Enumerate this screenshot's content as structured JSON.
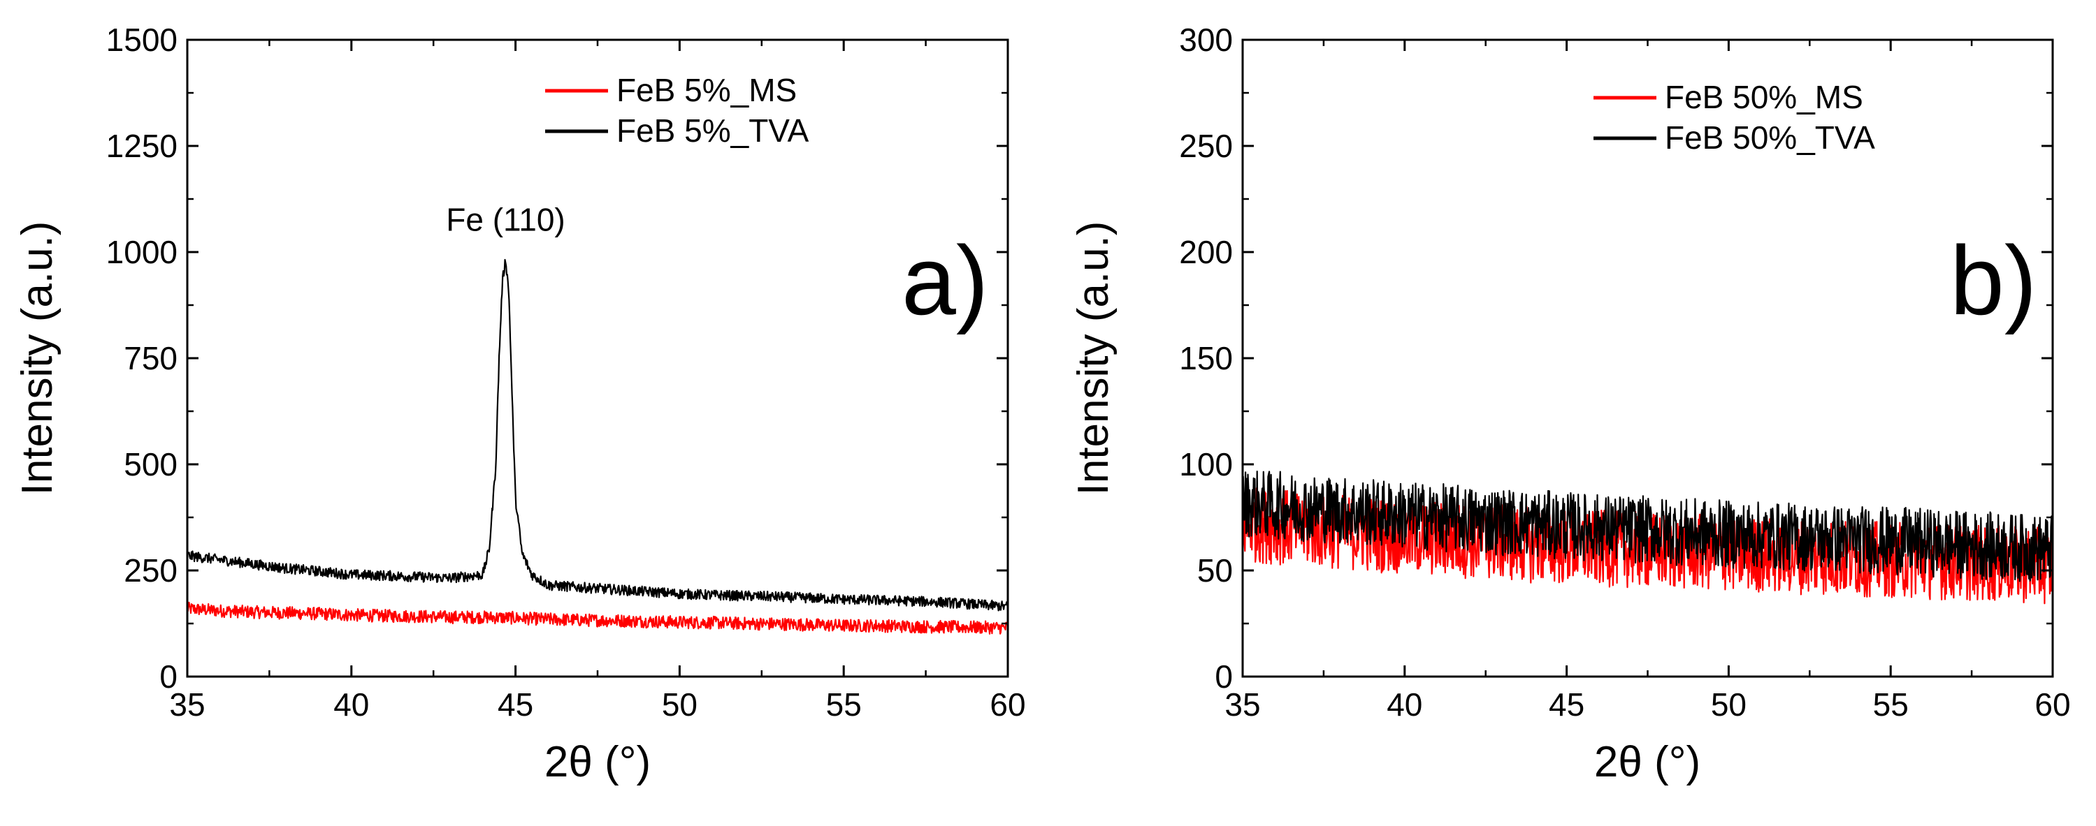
{
  "figure": {
    "background": "#ffffff"
  },
  "chart_data": [
    {
      "type": "line",
      "panel_label": "a)",
      "xlabel": "2θ (°)",
      "ylabel": "Intensity (a.u.)",
      "xlim": [
        35,
        60
      ],
      "ylim": [
        0,
        1500
      ],
      "xticks": [
        35,
        40,
        45,
        50,
        55,
        60
      ],
      "yticks": [
        0,
        250,
        500,
        750,
        1000,
        1250,
        1500
      ],
      "grid": false,
      "legend_position": "top-right",
      "annotations": [
        {
          "text": "Fe (110)",
          "x": 44.7,
          "y": 1075
        }
      ],
      "series": [
        {
          "name": "FeB 5%_MS",
          "color": "#ff0000",
          "x": [
            35,
            36,
            37,
            38,
            39,
            40,
            41,
            42,
            43,
            44,
            45,
            46,
            47,
            48,
            49,
            50,
            51,
            52,
            53,
            54,
            55,
            56,
            57,
            58,
            59,
            60
          ],
          "y": [
            160,
            155,
            152,
            150,
            148,
            145,
            143,
            142,
            140,
            140,
            138,
            135,
            133,
            132,
            130,
            128,
            127,
            125,
            124,
            122,
            120,
            120,
            118,
            117,
            116,
            115
          ],
          "noise": 15
        },
        {
          "name": "FeB 5%_TVA",
          "color": "#000000",
          "x": [
            35,
            36,
            37,
            38,
            39,
            40,
            41,
            42,
            43,
            44,
            44.2,
            44.4,
            44.5,
            44.6,
            44.7,
            44.8,
            44.9,
            45,
            45.2,
            45.5,
            46,
            47,
            48,
            49,
            50,
            51,
            52,
            53,
            54,
            55,
            56,
            57,
            58,
            59,
            60
          ],
          "y": [
            285,
            275,
            265,
            255,
            248,
            240,
            238,
            235,
            232,
            240,
            300,
            500,
            750,
            930,
            985,
            900,
            650,
            420,
            290,
            240,
            215,
            210,
            205,
            200,
            195,
            192,
            190,
            188,
            185,
            182,
            180,
            178,
            175,
            170,
            165
          ],
          "noise": 12
        }
      ]
    },
    {
      "type": "line",
      "panel_label": "b)",
      "xlabel": "2θ (°)",
      "ylabel": "Intensity (a.u.)",
      "xlim": [
        35,
        60
      ],
      "ylim": [
        0,
        300
      ],
      "xticks": [
        35,
        40,
        45,
        50,
        55,
        60
      ],
      "yticks": [
        0,
        50,
        100,
        150,
        200,
        250,
        300
      ],
      "grid": false,
      "legend_position": "top-right",
      "annotations": [],
      "series": [
        {
          "name": "FeB 50%_MS",
          "color": "#ff0000",
          "x": [
            35,
            40,
            45,
            50,
            55,
            60
          ],
          "y": [
            72,
            66,
            61,
            58,
            55,
            52
          ],
          "noise": 18
        },
        {
          "name": "FeB 50%_TVA",
          "color": "#000000",
          "x": [
            35,
            40,
            45,
            50,
            55,
            60
          ],
          "y": [
            82,
            76,
            71,
            67,
            64,
            60
          ],
          "noise": 16
        }
      ]
    }
  ]
}
